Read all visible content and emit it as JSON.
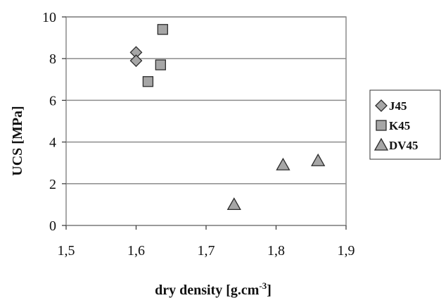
{
  "chart_data": {
    "type": "scatter",
    "xlabel": "dry density [g.cm",
    "xlabel_sup": "-3",
    "xlabel_end": "]",
    "ylabel": "UCS [MPa]",
    "xlim": [
      1.5,
      1.9
    ],
    "ylim": [
      0,
      10
    ],
    "x_ticks": [
      1.5,
      1.6,
      1.7,
      1.8,
      1.9
    ],
    "x_tick_labels": [
      "1,5",
      "1,6",
      "1,7",
      "1,8",
      "1,9"
    ],
    "y_ticks": [
      0,
      2,
      4,
      6,
      8,
      10
    ],
    "y_tick_labels": [
      "0",
      "2",
      "4",
      "6",
      "8",
      "10"
    ],
    "grid": "horizontal",
    "legend_position": "right",
    "series": [
      {
        "name": "J45",
        "marker": "diamond",
        "color": "#a6a6a6",
        "points": [
          {
            "x": 1.6,
            "y": 8.3
          },
          {
            "x": 1.6,
            "y": 7.9
          }
        ]
      },
      {
        "name": "K45",
        "marker": "square",
        "color": "#a6a6a6",
        "points": [
          {
            "x": 1.638,
            "y": 9.4
          },
          {
            "x": 1.635,
            "y": 7.7
          },
          {
            "x": 1.617,
            "y": 6.9
          }
        ]
      },
      {
        "name": "DV45",
        "marker": "triangle",
        "color": "#a6a6a6",
        "points": [
          {
            "x": 1.74,
            "y": 1.0
          },
          {
            "x": 1.81,
            "y": 2.9
          },
          {
            "x": 1.86,
            "y": 3.1
          }
        ]
      }
    ]
  }
}
